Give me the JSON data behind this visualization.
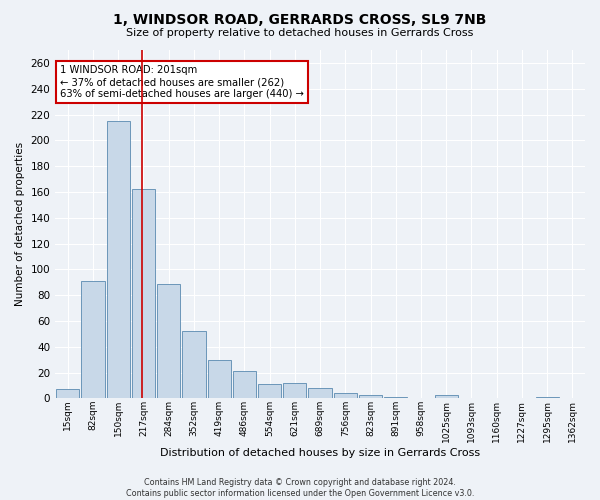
{
  "title": "1, WINDSOR ROAD, GERRARDS CROSS, SL9 7NB",
  "subtitle": "Size of property relative to detached houses in Gerrards Cross",
  "xlabel": "Distribution of detached houses by size in Gerrards Cross",
  "ylabel": "Number of detached properties",
  "footer_line1": "Contains HM Land Registry data © Crown copyright and database right 2024.",
  "footer_line2": "Contains public sector information licensed under the Open Government Licence v3.0.",
  "categories": [
    "15sqm",
    "82sqm",
    "150sqm",
    "217sqm",
    "284sqm",
    "352sqm",
    "419sqm",
    "486sqm",
    "554sqm",
    "621sqm",
    "689sqm",
    "756sqm",
    "823sqm",
    "891sqm",
    "958sqm",
    "1025sqm",
    "1093sqm",
    "1160sqm",
    "1227sqm",
    "1295sqm",
    "1362sqm"
  ],
  "values": [
    7,
    91,
    215,
    162,
    89,
    52,
    30,
    21,
    11,
    12,
    8,
    4,
    3,
    1,
    0,
    3,
    0,
    0,
    0,
    1,
    0
  ],
  "bar_color": "#c8d8e8",
  "bar_edge_color": "#5a8ab0",
  "ylim": [
    0,
    270
  ],
  "yticks": [
    0,
    20,
    40,
    60,
    80,
    100,
    120,
    140,
    160,
    180,
    200,
    220,
    240,
    260
  ],
  "vline_x": 2.95,
  "vline_color": "#cc0000",
  "annotation_text": "1 WINDSOR ROAD: 201sqm\n← 37% of detached houses are smaller (262)\n63% of semi-detached houses are larger (440) →",
  "background_color": "#eef2f7",
  "plot_bg_color": "#eef2f7",
  "grid_color": "#ffffff"
}
